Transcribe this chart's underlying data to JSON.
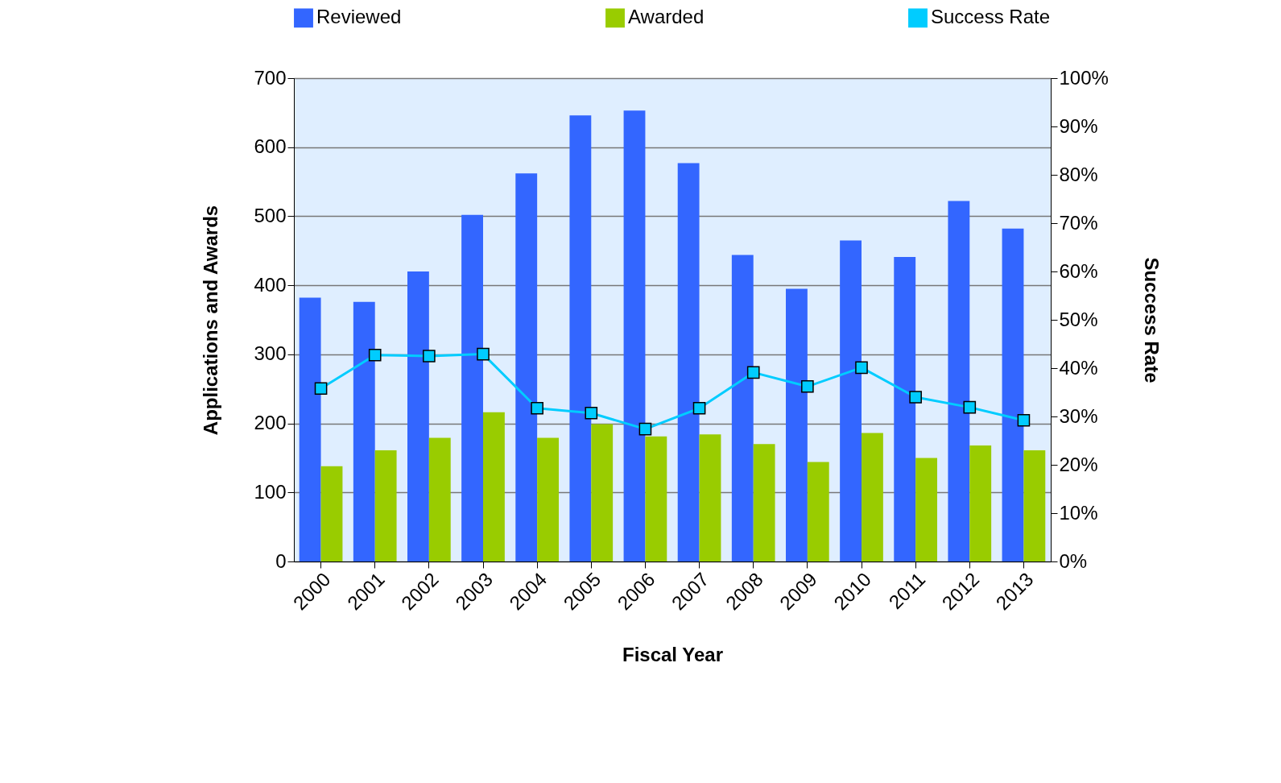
{
  "chart_data": {
    "type": "bar",
    "xlabel": "Fiscal Year",
    "ylabel": "Applications and Awards",
    "y2label": "Success Rate",
    "categories": [
      "2000",
      "2001",
      "2002",
      "2003",
      "2004",
      "2005",
      "2006",
      "2007",
      "2008",
      "2009",
      "2010",
      "2011",
      "2012",
      "2013"
    ],
    "series": [
      {
        "name": "Reviewed",
        "color": "#3366ff",
        "values": [
          382,
          376,
          420,
          502,
          562,
          646,
          653,
          577,
          444,
          395,
          465,
          441,
          522,
          482
        ]
      },
      {
        "name": "Awarded",
        "color": "#99cc00",
        "values": [
          138,
          161,
          179,
          216,
          179,
          199,
          181,
          184,
          170,
          144,
          186,
          150,
          168,
          161
        ]
      },
      {
        "name": "Success Rate",
        "type": "line",
        "axis": "y2",
        "color": "#00ccff",
        "values": [
          35.8,
          42.7,
          42.5,
          42.9,
          31.7,
          30.7,
          27.4,
          31.7,
          39.1,
          36.2,
          40.1,
          34.0,
          31.9,
          29.2
        ]
      }
    ],
    "ylim": [
      0,
      700
    ],
    "yticks": [
      0,
      100,
      200,
      300,
      400,
      500,
      600,
      700
    ],
    "y2lim": [
      0,
      100
    ],
    "y2ticks": [
      {
        "value": 0,
        "label": "0%"
      },
      {
        "value": 10,
        "label": "10%"
      },
      {
        "value": 20,
        "label": "20%"
      },
      {
        "value": 30,
        "label": "30%"
      },
      {
        "value": 40,
        "label": "40%"
      },
      {
        "value": 50,
        "label": "50%"
      },
      {
        "value": 60,
        "label": "60%"
      },
      {
        "value": 70,
        "label": "70%"
      },
      {
        "value": 80,
        "label": "80%"
      },
      {
        "value": 90,
        "label": "90%"
      },
      {
        "value": 100,
        "label": "100%"
      }
    ],
    "grid": "y",
    "legend": "top",
    "marker": "square",
    "line_style": "solid"
  }
}
